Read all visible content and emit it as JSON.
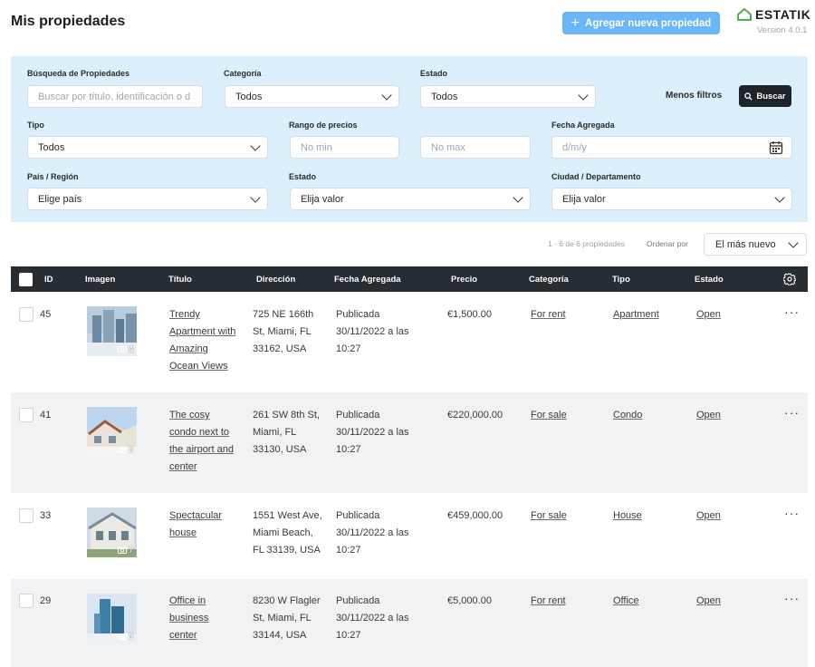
{
  "header": {
    "title": "Mis propiedades",
    "add_button": "Agregar nueva propiedad",
    "brand": "ESTATIK",
    "version": "Version 4.0.1"
  },
  "filters": {
    "search": {
      "label": "Búsqueda de Propiedades",
      "placeholder": "Buscar por título, identificación o d"
    },
    "category": {
      "label": "Categoría",
      "value": "Todos"
    },
    "status": {
      "label": "Estado",
      "value": "Todos"
    },
    "less_filters": "Menos filtros",
    "search_button": "Buscar",
    "type": {
      "label": "Tipo",
      "value": "Todos"
    },
    "price_range": {
      "label": "Rango de precios",
      "min_placeholder": "No min",
      "max_placeholder": "No max"
    },
    "date_added": {
      "label": "Fecha Agregada",
      "placeholder": "d/m/y"
    },
    "country": {
      "label": "País / Región",
      "value": "Elige país"
    },
    "state": {
      "label": "Estado",
      "value": "Elija valor"
    },
    "city": {
      "label": "Ciudad / Departamento",
      "value": "Elija valor"
    }
  },
  "results": {
    "count_text": "1 - 6 de 6 propiedades",
    "sort_label": "Ordenar por",
    "sort_value": "El más nuevo"
  },
  "table": {
    "columns": [
      "ID",
      "Imagen",
      "Título",
      "Dirección",
      "Fecha Agregada",
      "Precio",
      "Categoría",
      "Tipo",
      "Estado"
    ],
    "rows": [
      {
        "id": "45",
        "photos": "4",
        "title_lines": [
          "Trendy",
          "Apartment with",
          "Amazing",
          "Ocean Views"
        ],
        "address_lines": [
          "725 NE 166th",
          "St, Miami, FL",
          "33162, USA"
        ],
        "date_lines": [
          "Publicada",
          "30/11/2022 a las",
          "10:27"
        ],
        "price": "€1,500.00",
        "category": "For rent",
        "type": "Apartment",
        "status": "Open"
      },
      {
        "id": "41",
        "photos": "3",
        "title_lines": [
          "The cosy",
          "condo next to",
          "the airport and",
          "center"
        ],
        "address_lines": [
          "261 SW 8th St,",
          "Miami, FL",
          "33130, USA"
        ],
        "date_lines": [
          "Publicada",
          "30/11/2022 a las",
          "10:27"
        ],
        "price": "€220,000.00",
        "category": "For sale",
        "type": "Condo",
        "status": "Open"
      },
      {
        "id": "33",
        "photos": "7",
        "title_lines": [
          "Spectacular",
          "house"
        ],
        "address_lines": [
          "1551 West Ave,",
          "Miami Beach,",
          "FL 33139, USA"
        ],
        "date_lines": [
          "Publicada",
          "30/11/2022 a las",
          "10:27"
        ],
        "price": "€459,000.00",
        "category": "For sale",
        "type": "House",
        "status": "Open"
      },
      {
        "id": "29",
        "photos": "3",
        "title_lines": [
          "Office in",
          "business",
          "center"
        ],
        "address_lines": [
          "8230 W Flagler",
          "St, Miami, FL",
          "33144, USA"
        ],
        "date_lines": [
          "Publicada",
          "30/11/2022 a las",
          "10:27"
        ],
        "price": "€5,000.00",
        "category": "For rent",
        "type": "Office",
        "status": "Open"
      }
    ]
  },
  "colors": {
    "primary_button": "#6ab6f7",
    "filter_panel": "#dbeffc",
    "table_header": "#262d33",
    "brand_green": "#4caf50"
  }
}
